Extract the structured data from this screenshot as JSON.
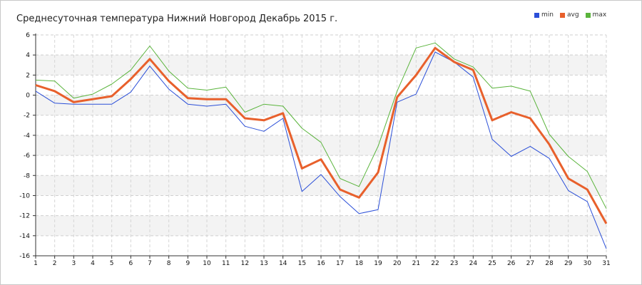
{
  "chart_data": {
    "type": "line",
    "title": "Среднесуточная температура Нижний Новгород  Декабрь 2015 г.",
    "xlabel": "",
    "ylabel": "",
    "x": [
      1,
      2,
      3,
      4,
      5,
      6,
      7,
      8,
      9,
      10,
      11,
      12,
      13,
      14,
      15,
      16,
      17,
      18,
      19,
      20,
      21,
      22,
      23,
      24,
      25,
      26,
      27,
      28,
      29,
      30,
      31
    ],
    "ylim": [
      -16,
      6
    ],
    "yticks": [
      6,
      4,
      2,
      0,
      -2,
      -4,
      -6,
      -8,
      -10,
      -12,
      -14,
      -16
    ],
    "grid": true,
    "legend_position": "top-right",
    "series": [
      {
        "name": "min",
        "color": "#2b4fd8",
        "values": [
          0.4,
          -0.8,
          -0.9,
          -0.9,
          -0.9,
          0.3,
          2.9,
          0.6,
          -0.9,
          -1.1,
          -0.9,
          -3.1,
          -3.6,
          -2.3,
          -9.6,
          -7.9,
          -10.1,
          -11.8,
          -11.4,
          -0.7,
          0.1,
          4.3,
          3.3,
          1.8,
          -4.4,
          -6.1,
          -5.1,
          -6.3,
          -9.5,
          -10.6,
          -15.3
        ]
      },
      {
        "name": "avg",
        "color": "#e8602c",
        "values": [
          1.0,
          0.4,
          -0.7,
          -0.4,
          -0.1,
          1.6,
          3.6,
          1.4,
          -0.3,
          -0.4,
          -0.4,
          -2.3,
          -2.5,
          -1.8,
          -7.3,
          -6.4,
          -9.4,
          -10.2,
          -7.7,
          -0.2,
          2.0,
          4.7,
          3.3,
          2.5,
          -2.5,
          -1.7,
          -2.3,
          -4.9,
          -8.3,
          -9.4,
          -12.8
        ]
      },
      {
        "name": "max",
        "color": "#5ab43c",
        "values": [
          1.5,
          1.4,
          -0.3,
          0.1,
          1.1,
          2.5,
          4.9,
          2.4,
          0.7,
          0.5,
          0.8,
          -1.7,
          -0.9,
          -1.1,
          -3.3,
          -4.7,
          -8.3,
          -9.1,
          -5.1,
          0.4,
          4.7,
          5.2,
          3.6,
          2.8,
          0.7,
          0.9,
          0.4,
          -3.9,
          -6.1,
          -7.6,
          -11.3
        ]
      }
    ]
  }
}
